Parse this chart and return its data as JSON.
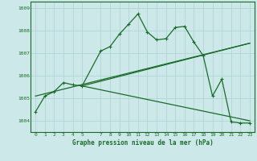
{
  "title": "Graphe pression niveau de la mer (hPa)",
  "bg_color": "#cce8e8",
  "grid_color": "#b0d4d4",
  "line_color": "#1a6b2a",
  "x_ticks": [
    0,
    1,
    2,
    3,
    4,
    5,
    7,
    8,
    9,
    10,
    11,
    12,
    13,
    14,
    15,
    16,
    17,
    18,
    19,
    20,
    21,
    22,
    23
  ],
  "ylim": [
    1003.5,
    1009.3
  ],
  "yticks": [
    1004,
    1005,
    1006,
    1007,
    1008,
    1009
  ],
  "main_line": {
    "x": [
      0,
      1,
      2,
      3,
      4,
      5,
      7,
      8,
      9,
      10,
      11,
      12,
      13,
      14,
      15,
      16,
      17,
      18,
      19,
      20,
      21,
      22,
      23
    ],
    "y": [
      1004.4,
      1005.1,
      1005.3,
      1005.7,
      1005.6,
      1005.55,
      1007.1,
      1007.3,
      1007.85,
      1008.3,
      1008.75,
      1007.95,
      1007.6,
      1007.65,
      1008.15,
      1008.2,
      1007.5,
      1006.9,
      1005.1,
      1005.85,
      1003.95,
      1003.9,
      1003.9
    ]
  },
  "trend_line1": {
    "x": [
      5,
      23
    ],
    "y": [
      1005.55,
      1007.45
    ]
  },
  "trend_line2": {
    "x": [
      5,
      23
    ],
    "y": [
      1005.55,
      1004.0
    ]
  },
  "trend_line3": {
    "x": [
      0,
      23
    ],
    "y": [
      1005.1,
      1007.45
    ]
  }
}
